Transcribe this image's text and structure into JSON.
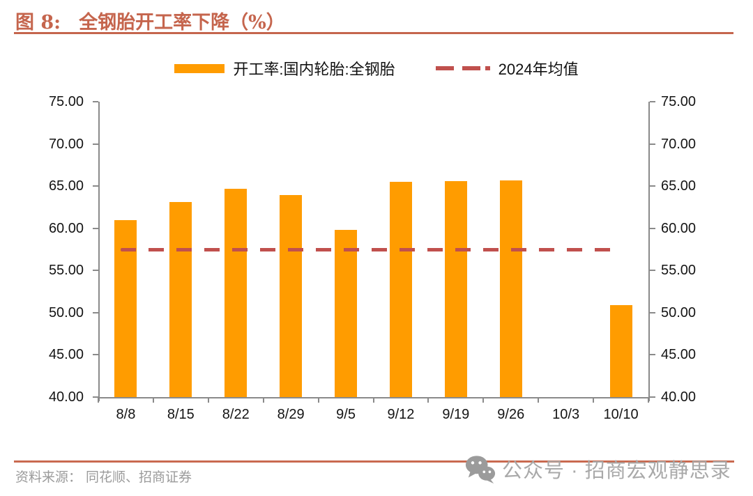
{
  "title": {
    "prefix": "图 8:",
    "text": "全钢胎开工率下降（%）"
  },
  "legend": {
    "bar_label": "开工率:国内轮胎:全钢胎",
    "line_label": "2024年均值"
  },
  "chart_data": {
    "type": "bar",
    "categories": [
      "8/8",
      "8/15",
      "8/22",
      "8/29",
      "9/5",
      "9/12",
      "9/19",
      "9/26",
      "10/3",
      "10/10"
    ],
    "values": [
      61.0,
      63.1,
      64.7,
      63.9,
      59.8,
      65.5,
      65.6,
      65.7,
      null,
      50.9
    ],
    "series_name": "开工率:国内轮胎:全钢胎",
    "avg_line": {
      "name": "2024年均值",
      "value": 57.4
    },
    "title": "全钢胎开工率下降（%）",
    "xlabel": "",
    "ylabel": "",
    "ylim": [
      40,
      75
    ],
    "ytick_step": 5,
    "ytick_labels": [
      "75.00",
      "70.00",
      "65.00",
      "60.00",
      "55.00",
      "50.00",
      "45.00",
      "40.00"
    ],
    "grid": false,
    "legend_position": "top",
    "dual_y_axis": true
  },
  "colors": {
    "bar": "#FF9C00",
    "avg_line": "#C0504D",
    "title": "#C5654D",
    "rule": "#C96A50",
    "axis": "#8A8A8A",
    "tick_label": "#141414",
    "footer_text": "#9B9B9B",
    "watermark": "#A9A9A9"
  },
  "footer": {
    "source": "资料来源： 同花顺、招商证券",
    "watermark": "公众号 · 招商宏观静思录"
  },
  "icons": {
    "wechat": "wechat-icon"
  }
}
